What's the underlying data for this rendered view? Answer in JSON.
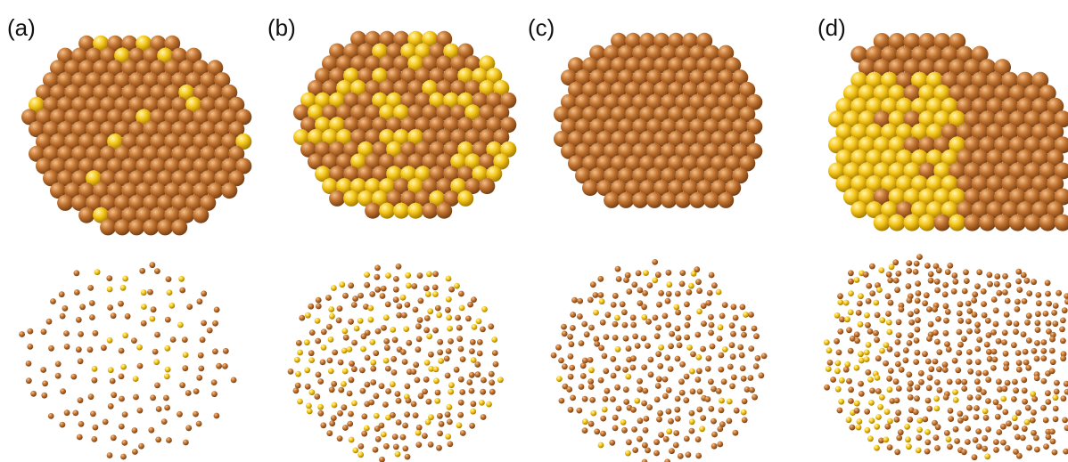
{
  "figure": {
    "atom_colors": {
      "primary": "#b8692a",
      "secondary": "#f2c21c",
      "background": "#ffffff"
    },
    "panels": [
      {
        "label": "(a)"
      },
      {
        "label": "(b)"
      },
      {
        "label": "(c)"
      },
      {
        "label": "(d)"
      }
    ]
  }
}
